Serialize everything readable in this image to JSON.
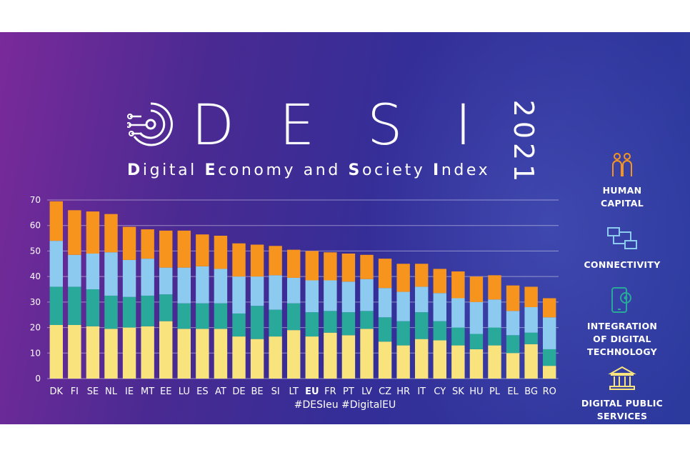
{
  "header": {
    "title_letters": [
      "D",
      "E",
      "S",
      "I"
    ],
    "year": "2021",
    "subtitle_parts": [
      {
        "text": "D",
        "bold": true
      },
      {
        "text": "igital ",
        "bold": false
      },
      {
        "text": "E",
        "bold": true
      },
      {
        "text": "conomy and ",
        "bold": false
      },
      {
        "text": "S",
        "bold": true
      },
      {
        "text": "ociety ",
        "bold": false
      },
      {
        "text": "I",
        "bold": true
      },
      {
        "text": "ndex",
        "bold": false
      }
    ]
  },
  "hashtags": "#DESIeu  #DigitalEU",
  "legend": [
    {
      "label_lines": [
        "HUMAN",
        "CAPITAL"
      ],
      "icon": "people-icon",
      "color": "#f7941d"
    },
    {
      "label_lines": [
        "CONNECTIVITY"
      ],
      "icon": "network-computers-icon",
      "color": "#8ccbef"
    },
    {
      "label_lines": [
        "INTEGRATION",
        "OF DIGITAL",
        "TECHNOLOGY"
      ],
      "icon": "phone-gear-icon",
      "color": "#28a99a"
    },
    {
      "label_lines": [
        "DIGITAL PUBLIC",
        "SERVICES"
      ],
      "icon": "government-building-icon",
      "color": "#f9e37d"
    }
  ],
  "chart_data": {
    "type": "bar",
    "stacked": true,
    "ylim": [
      0,
      70
    ],
    "yticks": [
      0,
      10,
      20,
      30,
      40,
      50,
      60,
      70
    ],
    "grid": true,
    "categories": [
      "DK",
      "FI",
      "SE",
      "NL",
      "IE",
      "MT",
      "EE",
      "LU",
      "ES",
      "AT",
      "DE",
      "BE",
      "SI",
      "LT",
      "EU",
      "FR",
      "PT",
      "LV",
      "CZ",
      "HR",
      "IT",
      "CY",
      "SK",
      "HU",
      "PL",
      "EL",
      "BG",
      "RO"
    ],
    "highlight_category": "EU",
    "series": [
      {
        "color": "#f9e37d",
        "values": [
          21,
          21,
          20.5,
          19.5,
          20,
          20.5,
          22.5,
          19.5,
          19.5,
          19.5,
          16.5,
          15.5,
          16.5,
          19,
          16.5,
          18,
          17,
          19.5,
          14.5,
          13,
          15.5,
          15,
          13,
          11.5,
          13,
          10,
          13.5,
          5
        ]
      },
      {
        "color": "#28a99a",
        "values": [
          15,
          15,
          14.5,
          13,
          12,
          12,
          10.5,
          10,
          10,
          10,
          9,
          13,
          10.5,
          10.5,
          9.5,
          8.5,
          9,
          7,
          9.5,
          9.5,
          10.5,
          7.5,
          7,
          6,
          7,
          7,
          4.5,
          6.5
        ]
      },
      {
        "color": "#8ccbef",
        "values": [
          18,
          12.5,
          14,
          17,
          14.5,
          14.5,
          10.5,
          14,
          14.5,
          13.5,
          14.5,
          11.5,
          13.5,
          10,
          12.5,
          12,
          12,
          12.5,
          11.5,
          11.5,
          10,
          11,
          11.5,
          12.5,
          11,
          9.5,
          10,
          12.5
        ]
      },
      {
        "color": "#f7941d",
        "values": [
          15.5,
          17.5,
          16.5,
          15,
          13,
          11.5,
          14.5,
          14.5,
          12.5,
          13,
          13,
          12.5,
          11.5,
          11,
          11.5,
          11,
          11,
          9.5,
          11.5,
          11,
          9,
          9.5,
          10.5,
          10,
          9.5,
          10,
          8,
          7.5
        ]
      }
    ]
  }
}
